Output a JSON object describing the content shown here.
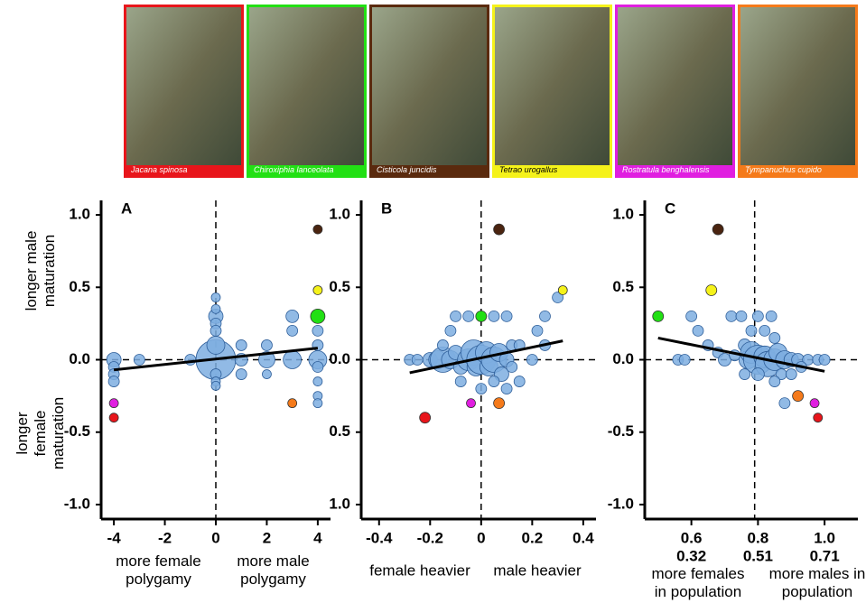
{
  "photos": [
    {
      "label": "Jacana spinosa",
      "color": "#e8151b"
    },
    {
      "label": "Chiroxiphia lanceolata",
      "color": "#22e014"
    },
    {
      "label": "Cisticola juncidis",
      "color": "#5a2a0e"
    },
    {
      "label": "Tetrao urogallus",
      "color": "#f5f21a"
    },
    {
      "label": "Rostratula benghalensis",
      "color": "#e01ee0"
    },
    {
      "label": "Tympanuchus cupido",
      "color": "#f57a1a"
    }
  ],
  "y_label_top": "longer male maturation",
  "y_label_bottom": "longer female maturation",
  "chart_data": [
    {
      "type": "scatter",
      "panel_label": "A",
      "xlim": [
        -4.5,
        4.5
      ],
      "ylim": [
        -1.1,
        1.1
      ],
      "xticks": [
        -4,
        -2,
        0,
        2,
        4
      ],
      "yticks": [
        {
          "value": 1,
          "label": "1.0"
        },
        {
          "value": 0.5,
          "label": "0.5"
        },
        {
          "value": 0,
          "label": "0.0"
        },
        {
          "value": -0.5,
          "label": "-0.5"
        },
        {
          "value": -1,
          "label": "-1.0"
        }
      ],
      "x_label_left": "more female polygamy",
      "x_label_right": "more male polygamy",
      "vline": 0,
      "hline": 0,
      "trend": {
        "x": [
          -4,
          4
        ],
        "y": [
          -0.07,
          0.08
        ]
      },
      "series": [
        {
          "color": "#7eaee0",
          "x": [
            -4,
            -4,
            -4,
            -4,
            -3,
            -1,
            0,
            0,
            0,
            0,
            0,
            0,
            0,
            0,
            0,
            0,
            1,
            1,
            1,
            2,
            2,
            2,
            3,
            3,
            3,
            4,
            4,
            4,
            4,
            4,
            4,
            4
          ],
          "values": [
            0,
            -0.05,
            -0.1,
            -0.15,
            0,
            0,
            0,
            0.1,
            0.3,
            0.25,
            0.35,
            0.43,
            -0.1,
            -0.15,
            -0.18,
            0.2,
            0,
            0.1,
            -0.1,
            0,
            0.1,
            -0.1,
            0,
            0.3,
            0.2,
            0,
            0.1,
            0.2,
            -0.15,
            -0.25,
            -0.3,
            -0.05
          ],
          "sizes": [
            8,
            6,
            6,
            6,
            6,
            6,
            22,
            10,
            8,
            6,
            5,
            5,
            6,
            5,
            5,
            6,
            7,
            6,
            6,
            9,
            6,
            5,
            10,
            7,
            6,
            10,
            6,
            6,
            5,
            5,
            5,
            6
          ]
        },
        {
          "colors": [
            "#e01ee0",
            "#e8151b",
            "#f57a1a",
            "#22e014",
            "#f5f21a",
            "#4a2410"
          ],
          "x": [
            -4,
            -4,
            3,
            4,
            4,
            4
          ],
          "values": [
            -0.3,
            -0.4,
            -0.3,
            0.3,
            0.48,
            0.9
          ],
          "sizes": [
            5,
            5,
            5,
            8,
            5,
            5
          ]
        }
      ]
    },
    {
      "type": "scatter",
      "panel_label": "B",
      "xlim": [
        -0.47,
        0.45
      ],
      "ylim": [
        -1.1,
        1.1
      ],
      "xticks": [
        -0.4,
        -0.2,
        0,
        0.2,
        0.4
      ],
      "yticks": [
        {
          "value": 1,
          "label": "1.0"
        },
        {
          "value": 0.5,
          "label": "0.5"
        },
        {
          "value": 0,
          "label": "0.0"
        },
        {
          "value": -0.5,
          "label": "0.5"
        },
        {
          "value": -1,
          "label": "1.0"
        }
      ],
      "x_label_left": "female heavier",
      "x_label_right": "male heavier",
      "vline": 0,
      "hline": 0,
      "trend": {
        "x": [
          -0.28,
          0.32
        ],
        "y": [
          -0.09,
          0.13
        ]
      },
      "series": [
        {
          "color": "#7eaee0",
          "x": [
            -0.28,
            -0.25,
            -0.2,
            -0.17,
            -0.15,
            -0.12,
            -0.1,
            -0.08,
            -0.05,
            -0.03,
            -0.02,
            0,
            0.02,
            0.03,
            0.05,
            0.07,
            0.08,
            0.1,
            0.12,
            0.15,
            0.2,
            0.25,
            0.3,
            0.25,
            0.22,
            0.1,
            0.15,
            -0.1,
            -0.05,
            -0.12,
            0.05,
            0.1,
            -0.08,
            0.05,
            0,
            0.12,
            -0.15
          ],
          "values": [
            0,
            0,
            0,
            0,
            0,
            0,
            0.05,
            -0.05,
            0,
            0.05,
            -0.05,
            0,
            0.05,
            -0.05,
            0,
            0.05,
            -0.1,
            0,
            0.1,
            0.1,
            0,
            0.1,
            0.43,
            0.3,
            0.2,
            -0.2,
            -0.15,
            0.3,
            0.3,
            0.2,
            0.3,
            0.3,
            -0.15,
            -0.15,
            -0.2,
            -0.05,
            0.1
          ],
          "sizes": [
            6,
            6,
            8,
            10,
            14,
            10,
            8,
            8,
            12,
            14,
            10,
            16,
            12,
            10,
            14,
            10,
            8,
            8,
            6,
            6,
            6,
            6,
            6,
            6,
            6,
            6,
            6,
            6,
            6,
            6,
            6,
            6,
            6,
            6,
            6,
            6,
            6
          ]
        },
        {
          "colors": [
            "#22e014",
            "#4a2410",
            "#f5f21a",
            "#e01ee0",
            "#f57a1a",
            "#e8151b"
          ],
          "x": [
            0,
            0.07,
            0.32,
            -0.04,
            0.07,
            -0.22
          ],
          "values": [
            0.3,
            0.9,
            0.48,
            -0.3,
            -0.3,
            -0.4
          ],
          "sizes": [
            6,
            6,
            5,
            5,
            6,
            6
          ]
        }
      ]
    },
    {
      "type": "scatter",
      "panel_label": "C",
      "xlim": [
        0.46,
        1.1
      ],
      "ylim": [
        -1.1,
        1.1
      ],
      "xticks": [
        0.6,
        0.8,
        {
          "value": 1,
          "label": "1.0"
        }
      ],
      "xtick_sublabels": [
        "0.32",
        "0.51",
        "0.71"
      ],
      "yticks": [
        {
          "value": 1,
          "label": "1.0"
        },
        {
          "value": 0.5,
          "label": "0.5"
        },
        {
          "value": 0,
          "label": "0.0"
        },
        {
          "value": -0.5,
          "label": "-0.5"
        },
        {
          "value": -1,
          "label": "-1.0"
        }
      ],
      "x_label_left": "more females in population",
      "x_label_right": "more males in population",
      "vline": 0.79,
      "hline": 0,
      "trend": {
        "x": [
          0.5,
          1.0
        ],
        "y": [
          0.15,
          -0.08
        ]
      },
      "series": [
        {
          "color": "#7eaee0",
          "x": [
            0.56,
            0.58,
            0.6,
            0.62,
            0.65,
            0.68,
            0.7,
            0.72,
            0.75,
            0.76,
            0.77,
            0.78,
            0.8,
            0.82,
            0.83,
            0.85,
            0.86,
            0.88,
            0.9,
            0.92,
            0.95,
            0.98,
            1.0,
            0.8,
            0.82,
            0.85,
            0.78,
            0.84,
            0.87,
            0.9,
            0.85,
            0.88,
            0.93,
            0.8,
            0.76,
            0.73
          ],
          "values": [
            0,
            0,
            0.3,
            0.2,
            0.1,
            0.05,
            0,
            0.3,
            0.3,
            0.1,
            0,
            0.05,
            0,
            0.02,
            -0.03,
            0,
            0.05,
            0,
            0,
            0,
            0,
            0,
            0,
            0.3,
            0.2,
            0.15,
            0.2,
            0.3,
            -0.1,
            -0.1,
            -0.15,
            -0.3,
            -0.05,
            -0.1,
            -0.1,
            0.03
          ],
          "sizes": [
            6,
            6,
            6,
            6,
            6,
            6,
            7,
            6,
            6,
            7,
            10,
            12,
            16,
            12,
            14,
            12,
            10,
            10,
            8,
            7,
            6,
            6,
            6,
            6,
            6,
            6,
            6,
            6,
            6,
            6,
            6,
            6,
            6,
            7,
            6,
            6
          ]
        },
        {
          "colors": [
            "#22e014",
            "#4a2410",
            "#f5f21a",
            "#f57a1a",
            "#e01ee0",
            "#e8151b"
          ],
          "x": [
            0.5,
            0.68,
            0.66,
            0.92,
            0.97,
            0.98
          ],
          "values": [
            0.3,
            0.9,
            0.48,
            -0.25,
            -0.3,
            -0.4
          ],
          "sizes": [
            6,
            6,
            6,
            6,
            5,
            5
          ]
        }
      ]
    }
  ]
}
